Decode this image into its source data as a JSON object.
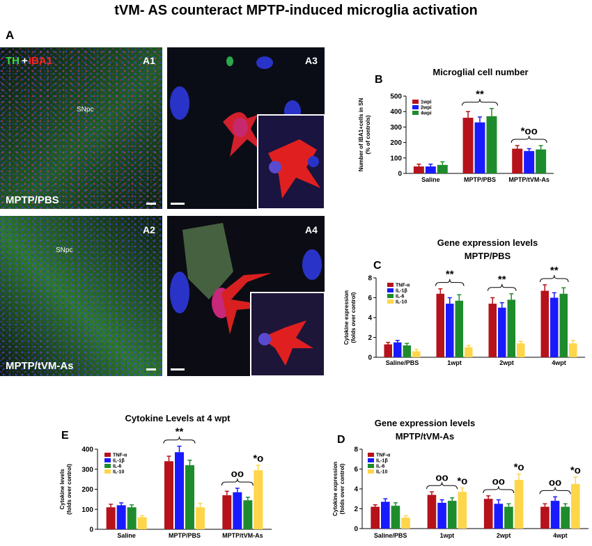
{
  "title": "tVM- AS counteract  MPTP-induced microglia activation",
  "panel_a": {
    "letter": "A",
    "stain": [
      "TH",
      "+",
      "IBA1"
    ],
    "images": [
      {
        "label": "A1",
        "region": "SNpc",
        "condition": "MPTP/PBS"
      },
      {
        "label": "A3"
      },
      {
        "label": "A2",
        "region": "SNpc",
        "condition": "MPTP/tVM-As"
      },
      {
        "label": "A4"
      }
    ]
  },
  "chart_data": [
    {
      "type": "bar",
      "letter": "B",
      "title": [
        "Microglial cell number"
      ],
      "ylabel": [
        "Number of IBA1+cells  in SN",
        "(% of controls)"
      ],
      "categories": [
        "Saline",
        "MPTP/PBS",
        "MPTP/tVM-As"
      ],
      "series": [
        {
          "name": "1wpi",
          "color": "#b5121b",
          "values": [
            45,
            360,
            160
          ],
          "errors": [
            15,
            40,
            20
          ]
        },
        {
          "name": "2wpi",
          "color": "#1a1aff",
          "values": [
            45,
            330,
            145
          ],
          "errors": [
            15,
            35,
            15
          ]
        },
        {
          "name": "4wpi",
          "color": "#1e8c2c",
          "values": [
            55,
            370,
            155
          ],
          "errors": [
            20,
            50,
            25
          ]
        }
      ],
      "brace_labels": [
        null,
        "**",
        "*oo"
      ],
      "ylim": [
        0,
        500
      ],
      "yticks": [
        0,
        100,
        200,
        300,
        400,
        500
      ]
    },
    {
      "type": "bar",
      "letter": "C",
      "title": [
        "Gene expression levels",
        "MPTP/PBS"
      ],
      "ylabel": [
        "Cytokine expression",
        "(folds over control)"
      ],
      "categories": [
        "Saline/PBS",
        "1wpt",
        "2wpt",
        "4wpt"
      ],
      "series": [
        {
          "name": "TNF-α",
          "color": "#b5121b",
          "values": [
            1.3,
            6.4,
            5.4,
            6.7
          ],
          "errors": [
            0.2,
            0.5,
            0.6,
            0.6
          ]
        },
        {
          "name": "IL-1β",
          "color": "#1a1aff",
          "values": [
            1.5,
            5.4,
            5.0,
            6.0
          ],
          "errors": [
            0.2,
            0.6,
            0.5,
            0.5
          ]
        },
        {
          "name": "IL-6",
          "color": "#1e8c2c",
          "values": [
            1.2,
            5.7,
            5.8,
            6.4
          ],
          "errors": [
            0.2,
            0.6,
            0.6,
            0.6
          ]
        },
        {
          "name": "IL-10",
          "color": "#ffd54a",
          "values": [
            0.6,
            1.0,
            1.4,
            1.4
          ],
          "errors": [
            0.2,
            0.2,
            0.2,
            0.3
          ]
        }
      ],
      "brace_labels": [
        null,
        "**",
        "**",
        "**"
      ],
      "ylim": [
        0,
        8
      ],
      "yticks": [
        0,
        2,
        4,
        6,
        8
      ]
    },
    {
      "type": "bar",
      "letter": "E",
      "title": [
        "Cytokine Levels  at 4 wpt"
      ],
      "ylabel": [
        "Cytokine levels",
        "(folds over control)"
      ],
      "categories": [
        "Saline",
        "MPTP/PBS",
        "MPTP/tVM-As"
      ],
      "series": [
        {
          "name": "TNF-α",
          "color": "#b5121b",
          "values": [
            110,
            340,
            170
          ],
          "errors": [
            15,
            25,
            20
          ]
        },
        {
          "name": "IL-1β",
          "color": "#1a1aff",
          "values": [
            120,
            385,
            185
          ],
          "errors": [
            12,
            30,
            20
          ]
        },
        {
          "name": "IL-6",
          "color": "#1e8c2c",
          "values": [
            110,
            320,
            145
          ],
          "errors": [
            12,
            25,
            15
          ]
        },
        {
          "name": "IL-10",
          "color": "#ffd54a",
          "values": [
            60,
            110,
            295
          ],
          "errors": [
            8,
            20,
            25
          ],
          "labels": [
            null,
            null,
            "*o"
          ]
        }
      ],
      "brace_labels": [
        null,
        "**",
        "oo"
      ],
      "ylim": [
        0,
        400
      ],
      "yticks": [
        0,
        100,
        200,
        300,
        400
      ]
    },
    {
      "type": "bar",
      "letter": "D",
      "title": [
        "Gene expression levels",
        "MPTP/tVM-As"
      ],
      "ylabel": [
        "Cytokine expression",
        "(folds over control)"
      ],
      "categories": [
        "Saline/PBS",
        "1wpt",
        "2wpt",
        "4wpt"
      ],
      "series": [
        {
          "name": "TNF-α",
          "color": "#b5121b",
          "values": [
            2.2,
            3.4,
            3.0,
            2.2
          ],
          "errors": [
            0.2,
            0.3,
            0.3,
            0.3
          ]
        },
        {
          "name": "IL-1β",
          "color": "#1a1aff",
          "values": [
            2.7,
            2.6,
            2.5,
            2.8
          ],
          "errors": [
            0.3,
            0.3,
            0.4,
            0.4
          ]
        },
        {
          "name": "IL-6",
          "color": "#1e8c2c",
          "values": [
            2.3,
            2.8,
            2.2,
            2.2
          ],
          "errors": [
            0.3,
            0.3,
            0.3,
            0.3
          ]
        },
        {
          "name": "IL-10",
          "color": "#ffd54a",
          "values": [
            1.1,
            3.7,
            4.9,
            4.5
          ],
          "errors": [
            0.2,
            0.4,
            0.6,
            0.7
          ],
          "labels": [
            null,
            "*o",
            "*o",
            "*o"
          ]
        }
      ],
      "brace_labels": [
        null,
        "oo",
        "oo",
        "oo"
      ],
      "ylim": [
        0,
        8
      ],
      "yticks": [
        0,
        2,
        4,
        6,
        8
      ]
    }
  ]
}
